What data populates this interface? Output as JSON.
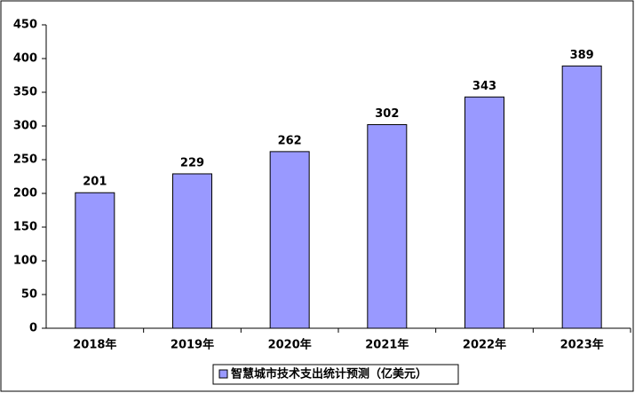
{
  "chart_data": {
    "type": "bar",
    "categories": [
      "2018年",
      "2019年",
      "2020年",
      "2021年",
      "2022年",
      "2023年"
    ],
    "series": [
      {
        "name": "智慧城市技术支出统计预测（亿美元）",
        "color": "#9999ff",
        "values": [
          201,
          229,
          262,
          302,
          343,
          389
        ]
      }
    ],
    "ylim": [
      0,
      450
    ],
    "yticks": [
      0,
      50,
      100,
      150,
      200,
      250,
      300,
      350,
      400,
      450
    ],
    "legend": "bottom"
  }
}
